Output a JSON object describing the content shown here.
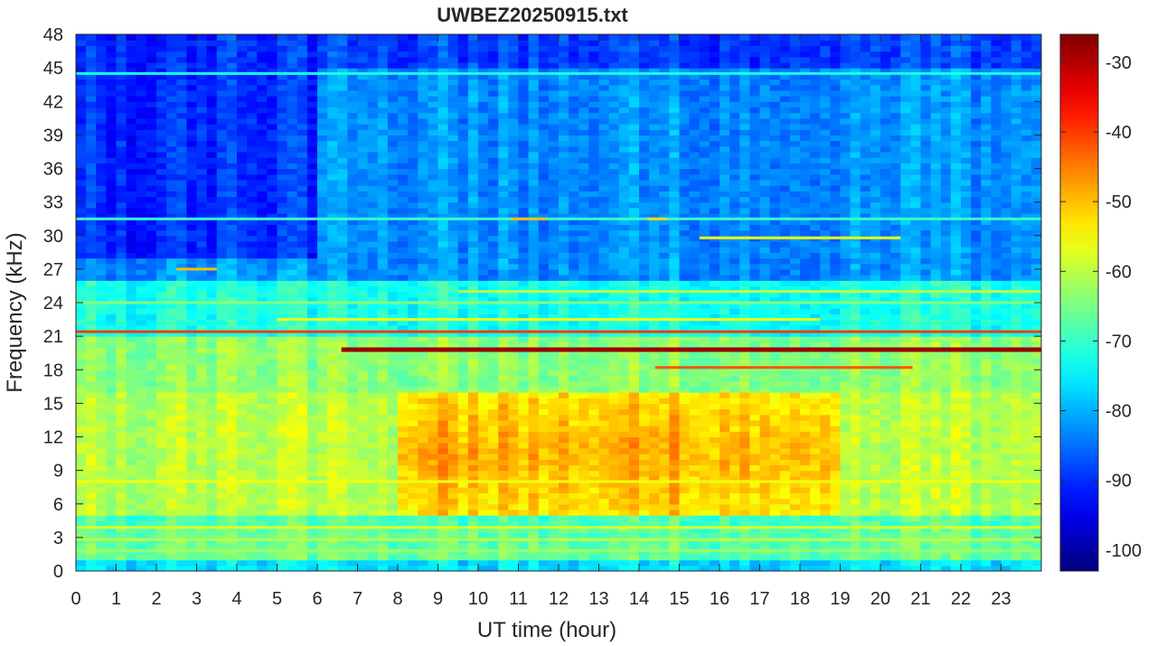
{
  "chart_data": {
    "type": "heatmap",
    "title": "UWBEZ20250915.txt",
    "xlabel": "UT time (hour)",
    "ylabel": "Frequency (kHz)",
    "xlim": [
      0,
      24
    ],
    "ylim": [
      0,
      48
    ],
    "x_ticks": [
      "0",
      "1",
      "2",
      "3",
      "4",
      "5",
      "6",
      "7",
      "8",
      "9",
      "10",
      "11",
      "12",
      "13",
      "14",
      "15",
      "16",
      "17",
      "18",
      "19",
      "20",
      "21",
      "22",
      "23"
    ],
    "y_ticks": [
      "0",
      "3",
      "6",
      "9",
      "12",
      "15",
      "18",
      "21",
      "24",
      "27",
      "30",
      "33",
      "36",
      "39",
      "42",
      "45",
      "48"
    ],
    "colorbar": {
      "colormap": "jet",
      "range": [
        -103,
        -26
      ],
      "ticks": [
        "-30",
        "-40",
        "-50",
        "-60",
        "-70",
        "-80",
        "-90",
        "-100"
      ]
    },
    "background_levels": [
      {
        "freq_range": [
          45,
          48
        ],
        "level": -88
      },
      {
        "freq_range": [
          26,
          45
        ],
        "level": -82
      },
      {
        "freq_range": [
          21,
          26
        ],
        "level": -72
      },
      {
        "freq_range": [
          16,
          21
        ],
        "level": -63
      },
      {
        "freq_range": [
          5,
          16
        ],
        "level": -60
      },
      {
        "freq_range": [
          4,
          5
        ],
        "level": -68
      },
      {
        "freq_range": [
          1,
          4
        ],
        "level": -66
      },
      {
        "freq_range": [
          0,
          1
        ],
        "level": -76
      }
    ],
    "enhancement_region": {
      "time_range": [
        8,
        19
      ],
      "freq_range": [
        5,
        16
      ],
      "level": -48
    },
    "quiet_region": {
      "time_range": [
        0,
        6
      ],
      "freq_range": [
        28,
        48
      ],
      "level": -90
    },
    "narrowband_lines": [
      {
        "freq": 19.8,
        "time_range": [
          6.6,
          24
        ],
        "level": -28
      },
      {
        "freq": 21.4,
        "time_range": [
          0,
          24
        ],
        "level": -40
      },
      {
        "freq": 18.2,
        "time_range": [
          14.4,
          20.8
        ],
        "level": -42
      },
      {
        "freq": 44.5,
        "time_range": [
          0,
          24
        ],
        "level": -72
      },
      {
        "freq": 31.5,
        "time_range": [
          0,
          24
        ],
        "level": -70
      },
      {
        "freq": 25.0,
        "time_range": [
          9.5,
          24
        ],
        "level": -60
      },
      {
        "freq": 24.0,
        "time_range": [
          0,
          24
        ],
        "level": -64
      },
      {
        "freq": 22.5,
        "time_range": [
          5,
          18.5
        ],
        "level": -56
      },
      {
        "freq": 8.0,
        "time_range": [
          0,
          24
        ],
        "level": -56
      },
      {
        "freq": 3.9,
        "time_range": [
          0,
          24
        ],
        "level": -58
      },
      {
        "freq": 2.8,
        "time_range": [
          0,
          24
        ],
        "level": -60
      },
      {
        "freq": 1.8,
        "time_range": [
          0,
          24
        ],
        "level": -62
      },
      {
        "freq": 29.8,
        "time_range": [
          15.5,
          20.5
        ],
        "level": -56
      },
      {
        "freq": 27.0,
        "time_range": [
          2.5,
          3.5
        ],
        "level": -50
      },
      {
        "freq": 31.5,
        "time_range": [
          10.8,
          11.7
        ],
        "level": -50
      },
      {
        "freq": 31.5,
        "time_range": [
          14.2,
          14.7
        ],
        "level": -52
      }
    ]
  }
}
